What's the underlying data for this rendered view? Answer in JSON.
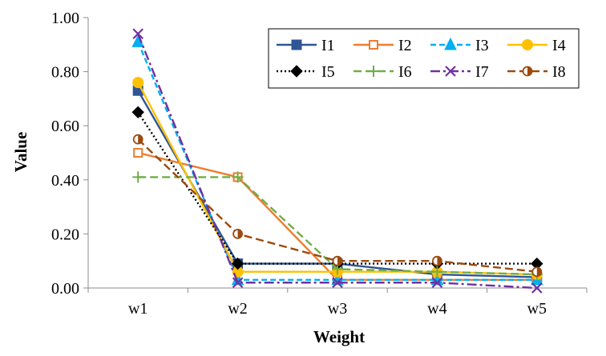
{
  "chart_data": {
    "type": "line",
    "title": "",
    "xlabel": "Weight",
    "ylabel": "Value",
    "categories": [
      "w1",
      "w2",
      "w3",
      "w4",
      "w5"
    ],
    "ylim": [
      0,
      1
    ],
    "yticks": [
      "0.00",
      "0.20",
      "0.40",
      "0.60",
      "0.80",
      "1.00"
    ],
    "ytick_values": [
      0,
      0.2,
      0.4,
      0.6,
      0.8,
      1.0
    ],
    "grid": false,
    "legend_position": "top-right",
    "series": [
      {
        "name": "I1",
        "color": "#2F5597",
        "dash": "solid",
        "marker": "square",
        "values": [
          0.73,
          0.09,
          0.09,
          0.05,
          0.04
        ]
      },
      {
        "name": "I2",
        "color": "#ED7D31",
        "dash": "solid",
        "marker": "square-open",
        "values": [
          0.5,
          0.41,
          0.03,
          0.03,
          0.03
        ]
      },
      {
        "name": "I3",
        "color": "#00B0F0",
        "dash": "dash",
        "marker": "triangle",
        "values": [
          0.91,
          0.03,
          0.03,
          0.03,
          0.03
        ]
      },
      {
        "name": "I4",
        "color": "#FFC000",
        "dash": "solid",
        "marker": "circle",
        "values": [
          0.76,
          0.06,
          0.06,
          0.06,
          0.05
        ]
      },
      {
        "name": "I5",
        "color": "#000000",
        "dash": "dot",
        "marker": "diamond",
        "values": [
          0.65,
          0.09,
          0.09,
          0.09,
          0.09
        ]
      },
      {
        "name": "I6",
        "color": "#70AD47",
        "dash": "longdash",
        "marker": "plus",
        "values": [
          0.41,
          0.41,
          0.07,
          0.06,
          0.05
        ]
      },
      {
        "name": "I7",
        "color": "#7030A0",
        "dash": "dashdot",
        "marker": "x",
        "values": [
          0.94,
          0.02,
          0.02,
          0.02,
          0.0
        ]
      },
      {
        "name": "I8",
        "color": "#9C4A0F",
        "dash": "longdash",
        "marker": "circle-half",
        "values": [
          0.55,
          0.2,
          0.1,
          0.1,
          0.06
        ]
      }
    ]
  }
}
